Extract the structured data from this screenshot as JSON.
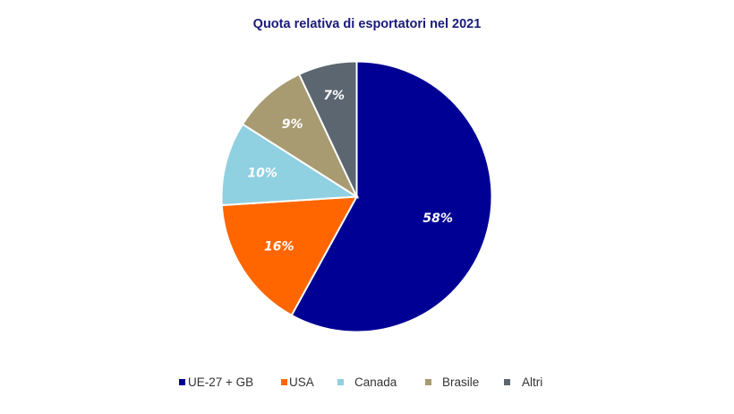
{
  "chart_data": {
    "type": "pie",
    "title": "Quota relativa di esportatori nel 2021",
    "categories": [
      "UE-27 + GB",
      "USA",
      "Canada",
      "Brasile",
      "Altri"
    ],
    "values": [
      58,
      16,
      10,
      9,
      7
    ],
    "labels": [
      "58%",
      "16%",
      "10%",
      "9%",
      "7%"
    ],
    "colors": [
      "#000094",
      "#ff6600",
      "#8fd0e1",
      "#a89b72",
      "#5b6670"
    ],
    "legend_position": "bottom",
    "start_angle": "12 o'clock, clockwise"
  },
  "title": "Quota relativa di esportatori nel 2021",
  "legend": [
    {
      "label": "UE-27 + GB",
      "color": "#000094"
    },
    {
      "label": "USA",
      "color": "#ff6600"
    },
    {
      "label": "Canada",
      "color": "#8fd0e1"
    },
    {
      "label": "Brasile",
      "color": "#a89b72"
    },
    {
      "label": "Altri",
      "color": "#5b6670"
    }
  ]
}
